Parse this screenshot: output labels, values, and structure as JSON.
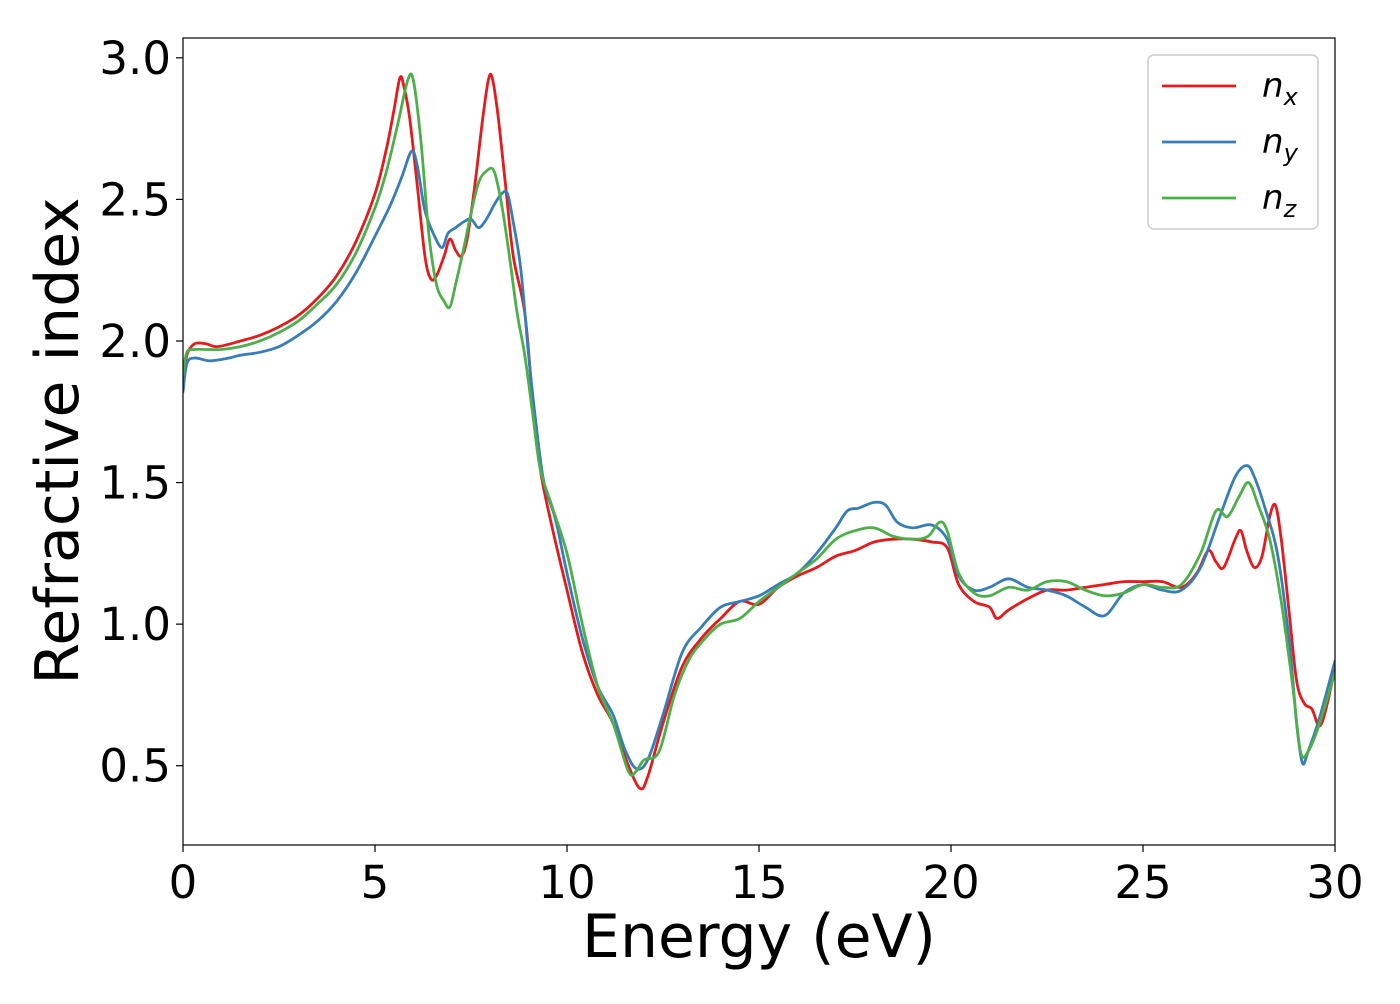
{
  "chart_data": {
    "type": "line",
    "title": "",
    "xlabel": "Energy (eV)",
    "ylabel": "Refractive index",
    "xlim": [
      0,
      30
    ],
    "ylim": [
      0.22,
      3.07
    ],
    "xticks": [
      0,
      5,
      10,
      15,
      20,
      25,
      30
    ],
    "xtick_labels": [
      "0",
      "5",
      "10",
      "15",
      "20",
      "25",
      "30"
    ],
    "yticks": [
      0.5,
      1.0,
      1.5,
      2.0,
      2.5,
      3.0
    ],
    "ytick_labels": [
      "0.5",
      "1.0",
      "1.5",
      "2.0",
      "2.5",
      "3.0"
    ],
    "grid": false,
    "legend": "top-right",
    "series": [
      {
        "name": "n",
        "subscript": "x",
        "color": "#e41a1c",
        "points": [
          [
            0,
            1.85
          ],
          [
            0.1,
            1.95
          ],
          [
            0.3,
            1.99
          ],
          [
            0.6,
            1.99
          ],
          [
            0.9,
            1.98
          ],
          [
            1.5,
            2.0
          ],
          [
            2,
            2.02
          ],
          [
            2.5,
            2.05
          ],
          [
            3,
            2.09
          ],
          [
            3.5,
            2.15
          ],
          [
            4,
            2.23
          ],
          [
            4.5,
            2.35
          ],
          [
            5,
            2.52
          ],
          [
            5.3,
            2.68
          ],
          [
            5.5,
            2.82
          ],
          [
            5.65,
            2.93
          ],
          [
            5.75,
            2.9
          ],
          [
            5.9,
            2.79
          ],
          [
            6.1,
            2.55
          ],
          [
            6.3,
            2.3
          ],
          [
            6.45,
            2.22
          ],
          [
            6.6,
            2.23
          ],
          [
            6.8,
            2.3
          ],
          [
            6.95,
            2.36
          ],
          [
            7.1,
            2.32
          ],
          [
            7.25,
            2.3
          ],
          [
            7.4,
            2.36
          ],
          [
            7.6,
            2.55
          ],
          [
            7.8,
            2.78
          ],
          [
            7.95,
            2.92
          ],
          [
            8.05,
            2.93
          ],
          [
            8.2,
            2.8
          ],
          [
            8.4,
            2.55
          ],
          [
            8.6,
            2.3
          ],
          [
            8.9,
            2.1
          ],
          [
            9.1,
            1.8
          ],
          [
            9.3,
            1.55
          ],
          [
            9.6,
            1.35
          ],
          [
            10,
            1.12
          ],
          [
            10.4,
            0.9
          ],
          [
            10.8,
            0.75
          ],
          [
            11.2,
            0.65
          ],
          [
            11.6,
            0.5
          ],
          [
            11.9,
            0.42
          ],
          [
            12.1,
            0.46
          ],
          [
            12.5,
            0.65
          ],
          [
            13,
            0.85
          ],
          [
            13.5,
            0.95
          ],
          [
            14,
            1.02
          ],
          [
            14.5,
            1.08
          ],
          [
            15,
            1.07
          ],
          [
            15.5,
            1.13
          ],
          [
            16,
            1.17
          ],
          [
            16.5,
            1.2
          ],
          [
            17,
            1.24
          ],
          [
            17.5,
            1.26
          ],
          [
            18,
            1.29
          ],
          [
            18.5,
            1.3
          ],
          [
            19,
            1.3
          ],
          [
            19.5,
            1.29
          ],
          [
            19.9,
            1.27
          ],
          [
            20.2,
            1.14
          ],
          [
            20.6,
            1.08
          ],
          [
            21,
            1.06
          ],
          [
            21.2,
            1.02
          ],
          [
            21.5,
            1.05
          ],
          [
            22,
            1.09
          ],
          [
            22.5,
            1.12
          ],
          [
            23,
            1.12
          ],
          [
            23.5,
            1.13
          ],
          [
            24,
            1.14
          ],
          [
            24.5,
            1.15
          ],
          [
            25,
            1.15
          ],
          [
            25.5,
            1.15
          ],
          [
            26,
            1.13
          ],
          [
            26.4,
            1.18
          ],
          [
            26.7,
            1.26
          ],
          [
            26.9,
            1.22
          ],
          [
            27.1,
            1.2
          ],
          [
            27.4,
            1.3
          ],
          [
            27.55,
            1.33
          ],
          [
            27.7,
            1.26
          ],
          [
            27.9,
            1.2
          ],
          [
            28.1,
            1.24
          ],
          [
            28.3,
            1.38
          ],
          [
            28.45,
            1.42
          ],
          [
            28.6,
            1.3
          ],
          [
            28.8,
            1.05
          ],
          [
            29,
            0.8
          ],
          [
            29.2,
            0.72
          ],
          [
            29.4,
            0.7
          ],
          [
            29.6,
            0.64
          ],
          [
            29.8,
            0.72
          ],
          [
            30,
            0.85
          ]
        ]
      },
      {
        "name": "n",
        "subscript": "y",
        "color": "#377eb8",
        "points": [
          [
            0,
            1.82
          ],
          [
            0.1,
            1.92
          ],
          [
            0.3,
            1.94
          ],
          [
            0.7,
            1.93
          ],
          [
            1.2,
            1.94
          ],
          [
            1.5,
            1.95
          ],
          [
            2,
            1.96
          ],
          [
            2.5,
            1.98
          ],
          [
            3,
            2.02
          ],
          [
            3.5,
            2.07
          ],
          [
            4,
            2.14
          ],
          [
            4.5,
            2.24
          ],
          [
            5,
            2.37
          ],
          [
            5.4,
            2.48
          ],
          [
            5.7,
            2.58
          ],
          [
            5.95,
            2.67
          ],
          [
            6.1,
            2.62
          ],
          [
            6.3,
            2.46
          ],
          [
            6.55,
            2.37
          ],
          [
            6.75,
            2.33
          ],
          [
            6.9,
            2.38
          ],
          [
            7.1,
            2.4
          ],
          [
            7.3,
            2.42
          ],
          [
            7.5,
            2.43
          ],
          [
            7.7,
            2.4
          ],
          [
            7.9,
            2.43
          ],
          [
            8.1,
            2.48
          ],
          [
            8.3,
            2.52
          ],
          [
            8.45,
            2.52
          ],
          [
            8.6,
            2.42
          ],
          [
            8.8,
            2.25
          ],
          [
            9,
            1.95
          ],
          [
            9.2,
            1.7
          ],
          [
            9.4,
            1.5
          ],
          [
            9.7,
            1.37
          ],
          [
            10,
            1.18
          ],
          [
            10.4,
            0.95
          ],
          [
            10.8,
            0.78
          ],
          [
            11.2,
            0.68
          ],
          [
            11.5,
            0.56
          ],
          [
            11.8,
            0.49
          ],
          [
            12.1,
            0.52
          ],
          [
            12.5,
            0.68
          ],
          [
            13,
            0.9
          ],
          [
            13.5,
            0.99
          ],
          [
            14,
            1.06
          ],
          [
            14.5,
            1.08
          ],
          [
            15,
            1.1
          ],
          [
            15.5,
            1.14
          ],
          [
            16,
            1.18
          ],
          [
            16.5,
            1.25
          ],
          [
            17,
            1.34
          ],
          [
            17.3,
            1.4
          ],
          [
            17.6,
            1.41
          ],
          [
            18,
            1.43
          ],
          [
            18.3,
            1.42
          ],
          [
            18.6,
            1.36
          ],
          [
            19,
            1.34
          ],
          [
            19.5,
            1.35
          ],
          [
            19.9,
            1.3
          ],
          [
            20.2,
            1.17
          ],
          [
            20.6,
            1.12
          ],
          [
            21,
            1.13
          ],
          [
            21.5,
            1.16
          ],
          [
            22,
            1.13
          ],
          [
            22.5,
            1.12
          ],
          [
            23,
            1.1
          ],
          [
            23.5,
            1.06
          ],
          [
            24,
            1.03
          ],
          [
            24.5,
            1.11
          ],
          [
            25,
            1.14
          ],
          [
            25.5,
            1.12
          ],
          [
            26,
            1.12
          ],
          [
            26.5,
            1.2
          ],
          [
            27,
            1.38
          ],
          [
            27.4,
            1.52
          ],
          [
            27.7,
            1.56
          ],
          [
            27.9,
            1.52
          ],
          [
            28.2,
            1.4
          ],
          [
            28.5,
            1.25
          ],
          [
            28.8,
            0.95
          ],
          [
            29,
            0.65
          ],
          [
            29.15,
            0.51
          ],
          [
            29.3,
            0.55
          ],
          [
            29.6,
            0.67
          ],
          [
            30,
            0.87
          ]
        ]
      },
      {
        "name": "n",
        "subscript": "z",
        "color": "#4daf4a",
        "points": [
          [
            0,
            1.88
          ],
          [
            0.1,
            1.96
          ],
          [
            0.3,
            1.97
          ],
          [
            0.6,
            1.97
          ],
          [
            1,
            1.97
          ],
          [
            1.5,
            1.98
          ],
          [
            2,
            2.0
          ],
          [
            2.5,
            2.03
          ],
          [
            3,
            2.07
          ],
          [
            3.5,
            2.13
          ],
          [
            4,
            2.2
          ],
          [
            4.5,
            2.31
          ],
          [
            5,
            2.47
          ],
          [
            5.3,
            2.6
          ],
          [
            5.6,
            2.77
          ],
          [
            5.85,
            2.92
          ],
          [
            6,
            2.92
          ],
          [
            6.2,
            2.7
          ],
          [
            6.4,
            2.38
          ],
          [
            6.6,
            2.2
          ],
          [
            6.8,
            2.14
          ],
          [
            6.95,
            2.12
          ],
          [
            7.1,
            2.2
          ],
          [
            7.3,
            2.32
          ],
          [
            7.5,
            2.45
          ],
          [
            7.7,
            2.56
          ],
          [
            7.9,
            2.6
          ],
          [
            8.1,
            2.6
          ],
          [
            8.3,
            2.48
          ],
          [
            8.5,
            2.3
          ],
          [
            8.7,
            2.1
          ],
          [
            8.9,
            1.95
          ],
          [
            9.1,
            1.75
          ],
          [
            9.3,
            1.55
          ],
          [
            9.6,
            1.42
          ],
          [
            10,
            1.25
          ],
          [
            10.4,
            1.0
          ],
          [
            10.8,
            0.78
          ],
          [
            11.2,
            0.65
          ],
          [
            11.6,
            0.48
          ],
          [
            11.8,
            0.48
          ],
          [
            12,
            0.52
          ],
          [
            12.4,
            0.55
          ],
          [
            12.8,
            0.75
          ],
          [
            13.2,
            0.88
          ],
          [
            13.6,
            0.95
          ],
          [
            14,
            1.0
          ],
          [
            14.5,
            1.02
          ],
          [
            15,
            1.08
          ],
          [
            15.5,
            1.13
          ],
          [
            16,
            1.18
          ],
          [
            16.5,
            1.23
          ],
          [
            17,
            1.3
          ],
          [
            17.5,
            1.33
          ],
          [
            18,
            1.34
          ],
          [
            18.5,
            1.31
          ],
          [
            19,
            1.3
          ],
          [
            19.4,
            1.31
          ],
          [
            19.7,
            1.36
          ],
          [
            19.9,
            1.33
          ],
          [
            20.2,
            1.18
          ],
          [
            20.6,
            1.11
          ],
          [
            21,
            1.1
          ],
          [
            21.5,
            1.13
          ],
          [
            22,
            1.12
          ],
          [
            22.5,
            1.15
          ],
          [
            23,
            1.15
          ],
          [
            23.5,
            1.12
          ],
          [
            24,
            1.1
          ],
          [
            24.5,
            1.11
          ],
          [
            25,
            1.14
          ],
          [
            25.5,
            1.13
          ],
          [
            26,
            1.14
          ],
          [
            26.5,
            1.25
          ],
          [
            26.9,
            1.4
          ],
          [
            27.2,
            1.38
          ],
          [
            27.5,
            1.45
          ],
          [
            27.75,
            1.5
          ],
          [
            28,
            1.42
          ],
          [
            28.3,
            1.3
          ],
          [
            28.6,
            1.08
          ],
          [
            28.9,
            0.78
          ],
          [
            29.1,
            0.55
          ],
          [
            29.3,
            0.55
          ],
          [
            29.6,
            0.65
          ],
          [
            30,
            0.83
          ]
        ]
      }
    ]
  }
}
